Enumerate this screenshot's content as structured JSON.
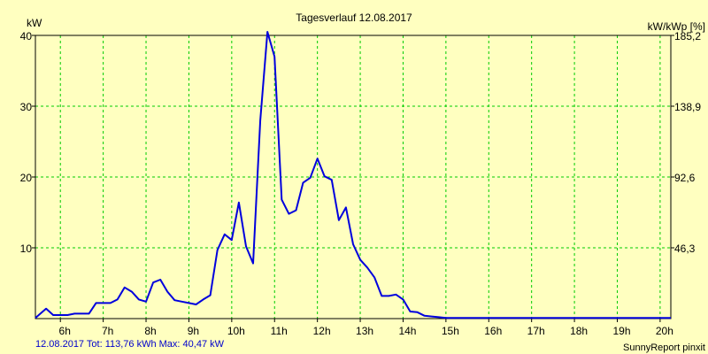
{
  "chart_data": {
    "type": "line",
    "title": "Tagesverlauf 12.08.2017",
    "ylabel_left": "kW",
    "ylabel_right": "kW/kWp [%]",
    "footer_left": "12.08.2017 Tot: 113,76 kWh Max: 40,47 kW",
    "footer_right": "SunnyReport pinxit",
    "xlim": [
      5.417,
      20.25
    ],
    "ylim": [
      0,
      40
    ],
    "x_ticks": [
      6,
      7,
      8,
      9,
      10,
      11,
      12,
      13,
      14,
      15,
      16,
      17,
      18,
      19,
      20
    ],
    "x_tick_labels": [
      "6h",
      "7h",
      "8h",
      "9h",
      "10h",
      "11h",
      "12h",
      "13h",
      "14h",
      "15h",
      "16h",
      "17h",
      "18h",
      "19h",
      "20h"
    ],
    "y_ticks": [
      10,
      20,
      30,
      40
    ],
    "y_tick_labels": [
      "10",
      "20",
      "30",
      "40"
    ],
    "y_right_tick_labels": [
      "46,3",
      "92,6",
      "138,9",
      "185,2"
    ],
    "grid": true,
    "colors": {
      "background": "#ffffc0",
      "grid": "#00cc00",
      "line": "#0000dd",
      "footer_text": "#0000cc"
    },
    "series": [
      {
        "x": [
          5.417,
          5.667,
          5.833,
          6.0,
          6.167,
          6.333,
          6.5,
          6.667,
          6.833,
          7.0,
          7.167,
          7.333,
          7.5,
          7.667,
          7.833,
          8.0,
          8.167,
          8.333,
          8.5,
          8.667,
          8.833,
          9.0,
          9.167,
          9.333,
          9.5,
          9.667,
          9.833,
          10.0,
          10.167,
          10.333,
          10.5,
          10.667,
          10.833,
          11.0,
          11.167,
          11.333,
          11.5,
          11.667,
          11.833,
          12.0,
          12.167,
          12.333,
          12.5,
          12.667,
          12.833,
          13.0,
          13.167,
          13.333,
          13.5,
          13.667,
          13.833,
          14.0,
          14.167,
          14.333,
          14.5,
          14.667,
          14.833,
          15.0,
          15.167,
          15.333,
          15.5,
          15.667,
          15.833,
          16.0,
          16.167,
          16.333,
          16.5,
          16.667,
          16.833,
          17.0,
          17.167,
          17.333,
          17.5,
          17.667,
          17.833,
          18.0,
          18.167,
          18.333,
          18.5,
          18.667,
          18.833,
          19.0,
          19.5,
          20.0,
          20.25
        ],
        "y": [
          0.1,
          1.4,
          0.5,
          0.5,
          0.5,
          0.7,
          0.7,
          0.7,
          2.2,
          2.2,
          2.2,
          2.7,
          4.4,
          3.8,
          2.7,
          2.4,
          5.1,
          5.5,
          3.8,
          2.6,
          2.4,
          2.2,
          2.0,
          2.7,
          3.3,
          9.7,
          11.9,
          11.1,
          16.4,
          10.2,
          7.8,
          28.0,
          40.5,
          37.0,
          16.8,
          14.8,
          15.3,
          19.2,
          19.9,
          22.6,
          20.1,
          19.6,
          13.9,
          15.7,
          10.5,
          8.3,
          7.2,
          5.8,
          3.2,
          3.2,
          3.4,
          2.7,
          1.0,
          0.9,
          0.4,
          0.3,
          0.2,
          0.1,
          0.1,
          0.1,
          0.1,
          0.1,
          0.1,
          0.1,
          0.1,
          0.1,
          0.1,
          0.1,
          0.1,
          0.1,
          0.1,
          0.1,
          0.1,
          0.1,
          0.1,
          0.1,
          0.1,
          0.1,
          0.1,
          0.1,
          0.1,
          0.1,
          0.1,
          0.1,
          0.1
        ]
      }
    ]
  }
}
